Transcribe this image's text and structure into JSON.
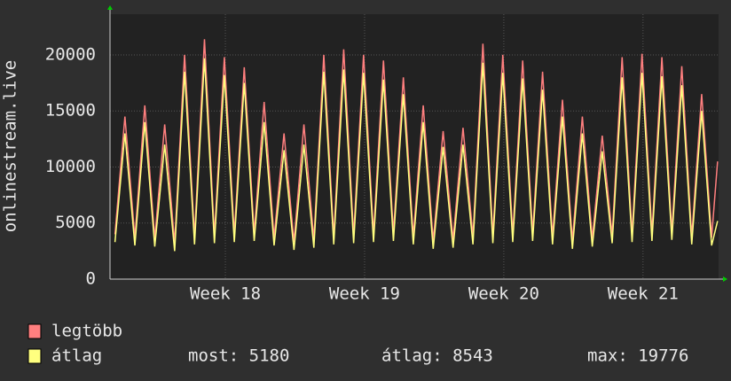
{
  "chart_data": {
    "type": "line",
    "y_label": "onlinestream.live",
    "x": [
      0.25,
      0.75,
      1.25,
      1.75,
      2.25,
      2.75,
      3.25,
      3.75,
      4.25,
      4.75,
      5.25,
      5.75,
      6.25,
      6.75,
      7.25,
      7.75,
      8.25,
      8.75,
      9.25,
      9.75,
      10.25,
      10.75,
      11.25,
      11.75,
      12.25,
      12.75,
      13.25,
      13.75,
      14.25,
      14.75,
      15.25,
      15.75,
      16.25,
      16.75,
      17.25,
      17.75,
      18.25,
      18.75,
      19.25,
      19.75,
      20.25,
      20.75,
      21.25,
      21.75,
      22.25,
      22.75,
      23.25,
      23.75,
      24.25,
      24.75,
      25.25,
      25.75,
      26.25,
      26.75,
      27.25,
      27.75,
      28.25,
      28.75,
      29.25,
      29.75,
      30.25,
      30.55
    ],
    "series": [
      {
        "name": "legtöbb",
        "color": "#ff7f7f",
        "values": [
          4000,
          14500,
          3700,
          15500,
          3600,
          13800,
          3200,
          20000,
          3800,
          21400,
          3900,
          19800,
          4000,
          18900,
          4100,
          15800,
          3700,
          13000,
          3300,
          13800,
          3500,
          20000,
          3800,
          20500,
          3900,
          20000,
          4000,
          19500,
          4100,
          18000,
          3800,
          15500,
          3400,
          13200,
          3500,
          13500,
          3800,
          21000,
          3900,
          20000,
          4000,
          19500,
          4100,
          18500,
          3800,
          16000,
          3400,
          14500,
          3600,
          12800,
          3900,
          19800,
          4000,
          20100,
          4100,
          19800,
          4200,
          19000,
          3800,
          16500,
          3700,
          10500
        ]
      },
      {
        "name": "átlag",
        "color": "#ffff7f",
        "values": [
          3300,
          13000,
          3000,
          14000,
          2900,
          12000,
          2500,
          18500,
          3100,
          19700,
          3200,
          18200,
          3300,
          17500,
          3400,
          14000,
          3000,
          11500,
          2600,
          12000,
          2800,
          18500,
          3100,
          18700,
          3200,
          18400,
          3300,
          17800,
          3400,
          16500,
          3100,
          14000,
          2700,
          11800,
          2800,
          12000,
          3100,
          19300,
          3200,
          18400,
          3300,
          17900,
          3400,
          16900,
          3100,
          14500,
          2700,
          13000,
          2900,
          11400,
          3200,
          18000,
          3300,
          18400,
          3400,
          18100,
          3500,
          17300,
          3100,
          15000,
          3000,
          5180
        ]
      }
    ],
    "xlim": [
      0,
      30.6
    ],
    "xticks": [
      {
        "value": 5.8,
        "label": "Week 18"
      },
      {
        "value": 12.8,
        "label": "Week 19"
      },
      {
        "value": 19.8,
        "label": "Week 20"
      },
      {
        "value": 26.8,
        "label": "Week 21"
      }
    ],
    "ylim": [
      0,
      23000
    ],
    "yticks": [
      0,
      5000,
      10000,
      15000,
      20000
    ],
    "grid": true,
    "stats": [
      "most: 5180",
      "átlag: 8543",
      "max: 19776"
    ]
  }
}
